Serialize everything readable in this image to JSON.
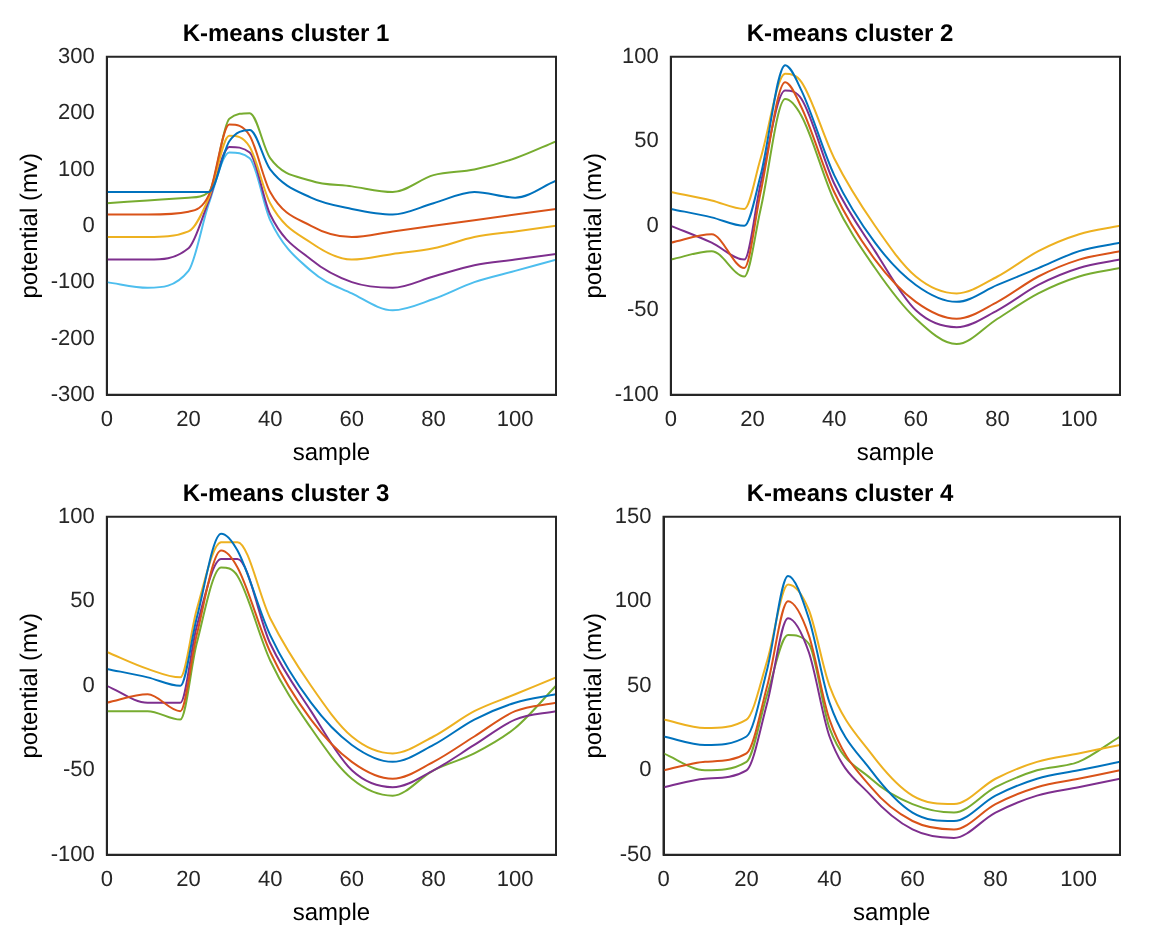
{
  "chart_data": [
    {
      "type": "line",
      "title": "K-means cluster 1",
      "xlabel": "sample",
      "ylabel": "potential (mv)",
      "xlim": [
        0,
        110
      ],
      "xticks": [
        0,
        20,
        40,
        60,
        80,
        100
      ],
      "ylim": [
        -300,
        300
      ],
      "yticks": [
        -300,
        -200,
        -100,
        0,
        100,
        200,
        300
      ],
      "grid": false,
      "legend": false,
      "x": [
        0,
        10,
        20,
        25,
        30,
        35,
        40,
        50,
        60,
        70,
        80,
        90,
        100,
        110
      ],
      "series": [
        {
          "color": "#0072bd",
          "values": [
            60,
            60,
            60,
            60,
            150,
            170,
            100,
            50,
            30,
            20,
            40,
            60,
            50,
            80
          ]
        },
        {
          "color": "#d95319",
          "values": [
            20,
            20,
            25,
            55,
            180,
            160,
            60,
            0,
            -20,
            -10,
            0,
            10,
            20,
            30
          ]
        },
        {
          "color": "#edb120",
          "values": [
            -20,
            -20,
            -10,
            50,
            160,
            140,
            40,
            -30,
            -60,
            -50,
            -40,
            -20,
            -10,
            0
          ]
        },
        {
          "color": "#7e2f8e",
          "values": [
            -60,
            -60,
            -40,
            45,
            140,
            130,
            20,
            -60,
            -100,
            -110,
            -90,
            -70,
            -60,
            -50
          ]
        },
        {
          "color": "#4dbeee",
          "values": [
            -100,
            -110,
            -80,
            40,
            130,
            120,
            10,
            -80,
            -120,
            -150,
            -130,
            -100,
            -80,
            -60
          ]
        },
        {
          "color": "#77ac30",
          "values": [
            40,
            45,
            50,
            60,
            190,
            200,
            120,
            80,
            70,
            60,
            90,
            100,
            120,
            150
          ]
        }
      ]
    },
    {
      "type": "line",
      "title": "K-means cluster 2",
      "xlabel": "sample",
      "ylabel": "potential (mv)",
      "xlim": [
        0,
        110
      ],
      "xticks": [
        0,
        20,
        40,
        60,
        80,
        100
      ],
      "ylim": [
        -100,
        100
      ],
      "yticks": [
        -100,
        -50,
        0,
        50,
        100
      ],
      "grid": false,
      "legend": false,
      "x": [
        0,
        10,
        18,
        22,
        28,
        32,
        40,
        50,
        60,
        70,
        80,
        90,
        100,
        110
      ],
      "series": [
        {
          "color": "#0072bd",
          "values": [
            10,
            5,
            0,
            30,
            95,
            80,
            30,
            -10,
            -35,
            -45,
            -35,
            -25,
            -15,
            -10
          ]
        },
        {
          "color": "#d95319",
          "values": [
            -10,
            -5,
            -25,
            20,
            85,
            70,
            20,
            -20,
            -45,
            -55,
            -45,
            -30,
            -20,
            -15
          ]
        },
        {
          "color": "#edb120",
          "values": [
            20,
            15,
            10,
            40,
            90,
            85,
            40,
            0,
            -30,
            -40,
            -30,
            -15,
            -5,
            0
          ]
        },
        {
          "color": "#7e2f8e",
          "values": [
            0,
            -10,
            -20,
            25,
            80,
            75,
            25,
            -15,
            -50,
            -60,
            -50,
            -35,
            -25,
            -20
          ]
        },
        {
          "color": "#77ac30",
          "values": [
            -20,
            -15,
            -30,
            10,
            75,
            65,
            15,
            -25,
            -55,
            -70,
            -55,
            -40,
            -30,
            -25
          ]
        }
      ]
    },
    {
      "type": "line",
      "title": "K-means cluster 3",
      "xlabel": "sample",
      "ylabel": "potential (mv)",
      "xlim": [
        0,
        110
      ],
      "xticks": [
        0,
        20,
        40,
        60,
        80,
        100
      ],
      "ylim": [
        -100,
        100
      ],
      "yticks": [
        -100,
        -50,
        0,
        50,
        100
      ],
      "grid": false,
      "legend": false,
      "x": [
        0,
        10,
        18,
        22,
        28,
        32,
        40,
        50,
        60,
        70,
        80,
        90,
        100,
        110
      ],
      "series": [
        {
          "color": "#0072bd",
          "values": [
            10,
            5,
            0,
            40,
            90,
            80,
            30,
            -10,
            -35,
            -45,
            -35,
            -20,
            -10,
            -5
          ]
        },
        {
          "color": "#d95319",
          "values": [
            -10,
            -5,
            -15,
            30,
            80,
            70,
            20,
            -20,
            -45,
            -55,
            -45,
            -30,
            -15,
            -10
          ]
        },
        {
          "color": "#edb120",
          "values": [
            20,
            10,
            5,
            45,
            85,
            85,
            40,
            0,
            -30,
            -40,
            -30,
            -15,
            -5,
            5
          ]
        },
        {
          "color": "#7e2f8e",
          "values": [
            0,
            -10,
            -10,
            35,
            75,
            75,
            25,
            -15,
            -50,
            -60,
            -50,
            -35,
            -20,
            -15
          ]
        },
        {
          "color": "#77ac30",
          "values": [
            -15,
            -15,
            -20,
            25,
            70,
            65,
            15,
            -25,
            -55,
            -65,
            -50,
            -40,
            -25,
            0
          ]
        }
      ]
    },
    {
      "type": "line",
      "title": "K-means cluster 4",
      "xlabel": "sample",
      "ylabel": "potential (mv)",
      "xlim": [
        0,
        110
      ],
      "xticks": [
        0,
        20,
        40,
        60,
        80,
        100
      ],
      "ylim": [
        -50,
        150
      ],
      "yticks": [
        -50,
        0,
        50,
        100,
        150
      ],
      "grid": false,
      "legend": false,
      "x": [
        0,
        10,
        20,
        25,
        30,
        35,
        40,
        50,
        60,
        70,
        80,
        90,
        100,
        110
      ],
      "series": [
        {
          "color": "#0072bd",
          "values": [
            20,
            15,
            20,
            60,
            115,
            90,
            40,
            0,
            -25,
            -30,
            -15,
            -5,
            0,
            5
          ]
        },
        {
          "color": "#d95319",
          "values": [
            0,
            5,
            10,
            50,
            100,
            80,
            30,
            -10,
            -30,
            -35,
            -20,
            -10,
            -5,
            0
          ]
        },
        {
          "color": "#edb120",
          "values": [
            30,
            25,
            30,
            65,
            110,
            95,
            50,
            10,
            -15,
            -20,
            -5,
            5,
            10,
            15
          ]
        },
        {
          "color": "#7e2f8e",
          "values": [
            -10,
            -5,
            0,
            40,
            90,
            70,
            20,
            -15,
            -35,
            -40,
            -25,
            -15,
            -10,
            -5
          ]
        },
        {
          "color": "#77ac30",
          "values": [
            10,
            0,
            5,
            45,
            80,
            75,
            25,
            -5,
            -20,
            -25,
            -10,
            0,
            5,
            20
          ]
        }
      ]
    }
  ]
}
